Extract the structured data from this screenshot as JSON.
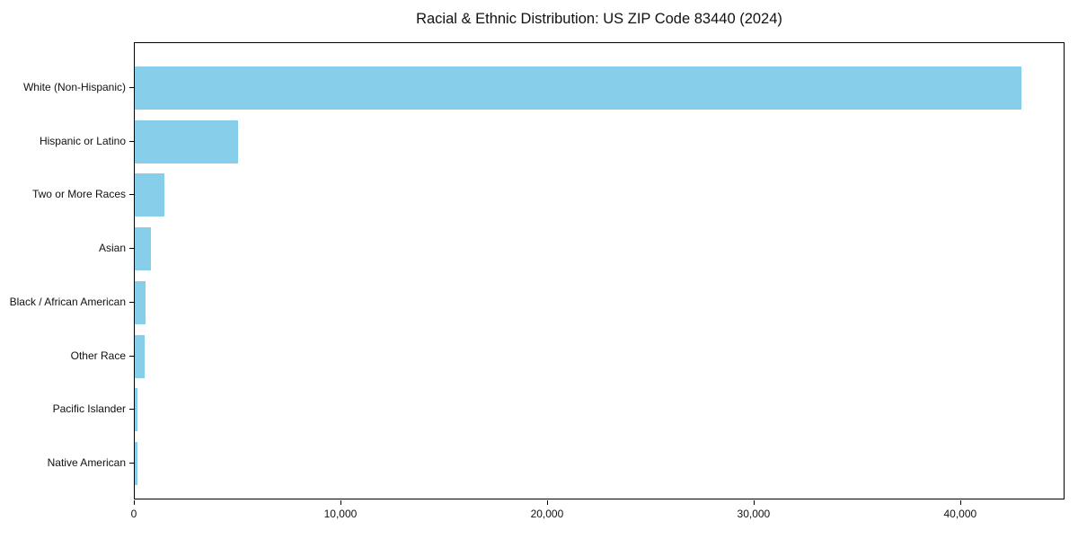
{
  "chart_data": {
    "type": "bar",
    "orientation": "horizontal",
    "title": "Racial & Ethnic Distribution: US ZIP Code 83440 (2024)",
    "categories": [
      "White (Non-Hispanic)",
      "Hispanic or Latino",
      "Two or More Races",
      "Asian",
      "Black / African American",
      "Other Race",
      "Pacific Islander",
      "Native American"
    ],
    "values": [
      42900,
      5000,
      1430,
      780,
      540,
      480,
      130,
      120
    ],
    "xlabel": "",
    "ylabel": "",
    "xlim": [
      0,
      45050
    ],
    "x_ticks": [
      0,
      10000,
      20000,
      30000,
      40000
    ],
    "x_tick_labels": [
      "0",
      "10,000",
      "20,000",
      "30,000",
      "40,000"
    ],
    "bar_color": "#87CEEB",
    "grid": false,
    "legend": "none"
  }
}
